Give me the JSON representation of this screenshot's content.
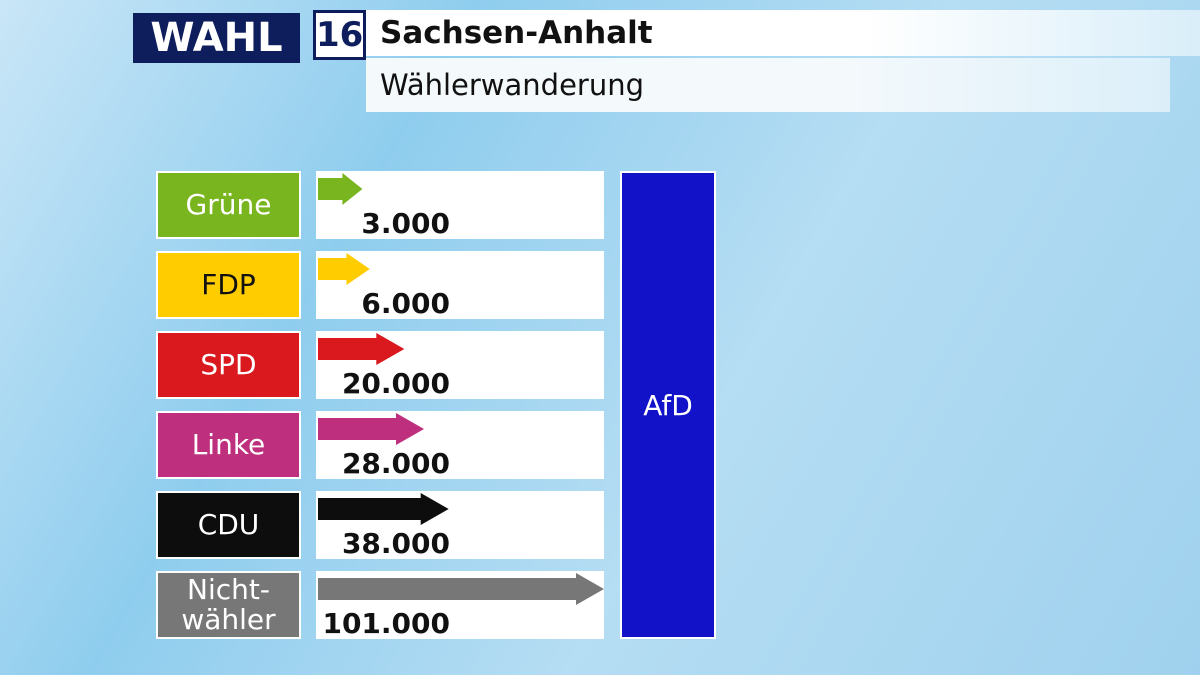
{
  "header": {
    "logo": "WAHL",
    "number": "16"
  },
  "chart_data": {
    "type": "flow",
    "title": "Sachsen-Anhalt",
    "subtitle": "Wählerwanderung",
    "categories": [
      "Grüne",
      "FDP",
      "SPD",
      "Linke",
      "CDU",
      "Nicht-\nwähler"
    ],
    "values": [
      3000,
      6000,
      20000,
      28000,
      38000,
      101000
    ],
    "value_labels": [
      "3.000",
      "6.000",
      "20.000",
      "28.000",
      "38.000",
      "101.000"
    ],
    "colors": [
      "#79b51f",
      "#ffcc00",
      "#d9191e",
      "#be2f7e",
      "#0d0d0d",
      "#777777"
    ],
    "label_colors": [
      "#ffffff",
      "#111111",
      "#ffffff",
      "#ffffff",
      "#ffffff",
      "#ffffff"
    ],
    "target": "AfD",
    "target_color": "#1212c8"
  }
}
